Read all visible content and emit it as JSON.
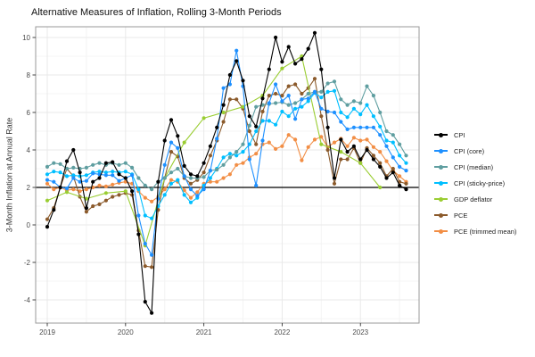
{
  "title": "Alternative Measures of Inflation, Rolling 3-Month Periods",
  "chart_data": {
    "type": "line",
    "title": "Alternative Measures of Inflation, Rolling 3-Month Periods",
    "xlabel": "",
    "ylabel": "3-Month Inflation at Annual Rate",
    "ylim": [
      -5.2,
      10.6
    ],
    "yticks": [
      -4,
      -2,
      0,
      2,
      4,
      6,
      8,
      10
    ],
    "xticks": [
      "2019",
      "2020",
      "2021",
      "2022",
      "2023"
    ],
    "grid": true,
    "legend_position": "right",
    "reference_line_y": 2,
    "point_markers": true,
    "x": [
      "2019-01",
      "2019-02",
      "2019-03",
      "2019-04",
      "2019-05",
      "2019-06",
      "2019-07",
      "2019-08",
      "2019-09",
      "2019-10",
      "2019-11",
      "2019-12",
      "2020-01",
      "2020-02",
      "2020-03",
      "2020-04",
      "2020-05",
      "2020-06",
      "2020-07",
      "2020-08",
      "2020-09",
      "2020-10",
      "2020-11",
      "2020-12",
      "2021-01",
      "2021-02",
      "2021-03",
      "2021-04",
      "2021-05",
      "2021-06",
      "2021-07",
      "2021-08",
      "2021-09",
      "2021-10",
      "2021-11",
      "2021-12",
      "2022-01",
      "2022-02",
      "2022-03",
      "2022-04",
      "2022-05",
      "2022-06",
      "2022-07",
      "2022-08",
      "2022-09",
      "2022-10",
      "2022-11",
      "2022-12",
      "2023-01",
      "2023-02",
      "2023-03",
      "2023-04",
      "2023-05",
      "2023-06",
      "2023-07",
      "2023-08"
    ],
    "series": [
      {
        "name": "CPI",
        "color": "#000000",
        "values": [
          -0.1,
          0.8,
          2.0,
          3.4,
          4.0,
          2.8,
          0.9,
          2.3,
          2.5,
          3.3,
          3.35,
          2.7,
          2.5,
          1.8,
          -0.5,
          -4.1,
          -4.7,
          2.3,
          4.5,
          5.6,
          4.75,
          3.15,
          2.7,
          2.6,
          3.3,
          4.2,
          5.2,
          6.4,
          8.0,
          8.75,
          7.7,
          5.8,
          5.25,
          6.75,
          8.3,
          10.0,
          8.7,
          9.5,
          8.6,
          8.85,
          9.4,
          10.25,
          8.3,
          5.2,
          2.5,
          4.55,
          3.9,
          4.2,
          3.5,
          4.0,
          3.5,
          3.1,
          2.5,
          2.8,
          2.1,
          1.9
        ]
      },
      {
        "name": "CPI (core)",
        "color": "#1E90FF",
        "values": [
          2.4,
          2.3,
          2.0,
          1.95,
          2.5,
          2.3,
          2.35,
          2.75,
          2.7,
          2.65,
          2.65,
          2.35,
          2.5,
          2.65,
          0.5,
          -1.0,
          -1.6,
          1.4,
          3.2,
          4.4,
          4.1,
          2.6,
          1.9,
          1.55,
          1.9,
          2.9,
          4.6,
          7.3,
          7.5,
          9.3,
          7.4,
          3.5,
          2.1,
          4.5,
          6.5,
          7.5,
          6.6,
          6.9,
          5.65,
          6.7,
          6.75,
          7.1,
          6.2,
          6.05,
          6.0,
          5.5,
          5.1,
          5.2,
          5.2,
          5.2,
          5.2,
          4.8,
          4.2,
          3.6,
          3.1,
          2.9
        ]
      },
      {
        "name": "CPI (median)",
        "color": "#5F9EA0",
        "values": [
          3.1,
          3.3,
          3.25,
          3.0,
          3.05,
          3.0,
          3.05,
          3.2,
          3.3,
          3.2,
          3.3,
          3.2,
          3.3,
          3.05,
          2.5,
          2.1,
          1.9,
          2.3,
          2.5,
          2.8,
          3.0,
          2.6,
          2.5,
          2.5,
          2.55,
          2.9,
          2.95,
          3.2,
          3.6,
          3.9,
          4.3,
          5.3,
          6.3,
          6.4,
          6.45,
          6.5,
          6.55,
          6.4,
          6.5,
          6.7,
          7.0,
          7.1,
          7.1,
          7.55,
          7.65,
          6.7,
          6.4,
          6.6,
          6.5,
          7.4,
          6.9,
          6.0,
          5.0,
          4.8,
          4.3,
          3.7
        ]
      },
      {
        "name": "CPI (sticky-price)",
        "color": "#00BFFF",
        "values": [
          2.7,
          2.85,
          2.8,
          2.6,
          2.65,
          2.6,
          2.65,
          2.8,
          2.85,
          2.8,
          2.85,
          2.8,
          2.85,
          2.7,
          1.9,
          0.5,
          0.35,
          1.0,
          1.6,
          2.2,
          2.4,
          1.6,
          1.2,
          1.45,
          2.1,
          2.5,
          3.0,
          3.6,
          3.8,
          3.7,
          3.9,
          4.3,
          5.0,
          5.55,
          5.55,
          5.35,
          6.05,
          5.8,
          6.2,
          6.3,
          6.6,
          7.05,
          6.8,
          7.1,
          7.15,
          6.0,
          5.75,
          6.2,
          5.9,
          6.4,
          5.8,
          5.25,
          4.5,
          4.4,
          3.7,
          3.3
        ]
      },
      {
        "name": "GDP deflator",
        "color": "#9ACD32",
        "values": [
          1.3,
          null,
          null,
          1.75,
          null,
          null,
          1.4,
          null,
          null,
          1.7,
          null,
          null,
          1.8,
          null,
          null,
          -1.1,
          null,
          null,
          2.5,
          null,
          null,
          4.4,
          null,
          null,
          5.7,
          null,
          null,
          6.0,
          null,
          null,
          6.3,
          null,
          null,
          6.9,
          null,
          null,
          8.35,
          null,
          null,
          9.0,
          null,
          null,
          4.3,
          null,
          null,
          3.9,
          null,
          null,
          3.3,
          null,
          null,
          2.0,
          null,
          null,
          null,
          null
        ]
      },
      {
        "name": "PCE",
        "color": "#8B5A2B",
        "values": [
          0.3,
          0.9,
          2.0,
          3.0,
          2.6,
          1.5,
          0.7,
          1.0,
          1.1,
          1.3,
          1.5,
          1.6,
          1.7,
          1.6,
          -0.3,
          -2.2,
          -2.25,
          0.8,
          2.5,
          3.9,
          3.65,
          2.5,
          2.2,
          2.4,
          2.8,
          3.7,
          4.5,
          5.5,
          6.7,
          6.7,
          6.2,
          5.0,
          4.3,
          6.05,
          6.9,
          7.0,
          6.9,
          7.4,
          7.5,
          7.0,
          7.3,
          7.8,
          5.8,
          4.0,
          2.2,
          3.5,
          3.5,
          4.1,
          3.3,
          4.1,
          3.7,
          3.3,
          2.6,
          3.0,
          2.3,
          2.2
        ]
      },
      {
        "name": "PCE (trimmed mean)",
        "color": "#F28E45",
        "values": [
          2.2,
          1.9,
          2.0,
          1.85,
          1.9,
          1.8,
          1.9,
          2.0,
          2.1,
          2.05,
          2.15,
          2.25,
          2.3,
          2.2,
          1.8,
          1.45,
          1.25,
          1.5,
          1.9,
          2.4,
          2.3,
          1.85,
          1.45,
          1.75,
          2.2,
          2.3,
          2.3,
          2.5,
          2.7,
          3.2,
          3.3,
          3.6,
          3.8,
          4.3,
          4.4,
          4.05,
          4.2,
          4.8,
          4.55,
          3.45,
          4.15,
          4.55,
          4.7,
          4.15,
          4.4,
          4.6,
          4.2,
          4.65,
          4.5,
          4.55,
          4.15,
          3.9,
          3.4,
          2.9,
          2.6,
          2.3
        ]
      }
    ],
    "colors": {
      "axis_text": "#4D4D4D",
      "panel_border": "#999999",
      "grid_major": "#E9E9E9",
      "grid_minor": "#F4F4F4",
      "reference_line": "#000000"
    }
  }
}
